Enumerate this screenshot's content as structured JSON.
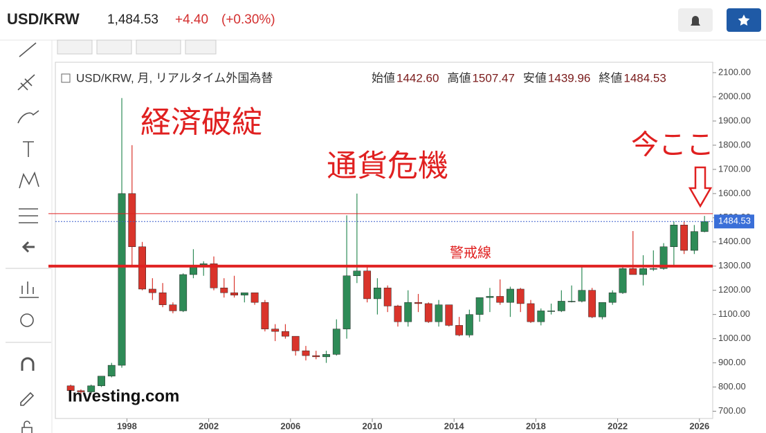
{
  "header": {
    "symbol": "USD/KRW",
    "price": "1,484.53",
    "change": "+4.40",
    "change_pct": "(+0.30%)"
  },
  "chart_data": {
    "type": "candlestick",
    "legend": {
      "title": "USD/KRW, 月, リアルタイム外国為替",
      "items": [
        {
          "label": "始値",
          "value": "1442.60"
        },
        {
          "label": "高値",
          "value": "1507.47"
        },
        {
          "label": "安値",
          "value": "1439.96"
        },
        {
          "label": "終値",
          "value": "1484.53"
        }
      ]
    },
    "annotations": [
      "経済破綻",
      "通貨危機",
      "今ここ"
    ],
    "watermark": "Investing.com",
    "up_color": "#2e8b57",
    "down_color": "#d9342b",
    "xlim": [
      1994.5,
      2026.65
    ],
    "ylim": [
      670,
      2143
    ],
    "xticks": [
      1998,
      2002,
      2006,
      2010,
      2014,
      2018,
      2022,
      2026
    ],
    "yticks": [
      {
        "value": 700,
        "label": "700.00"
      },
      {
        "value": 800,
        "label": "800.00"
      },
      {
        "value": 900,
        "label": "900.00"
      },
      {
        "value": 1000,
        "label": "1000.00"
      },
      {
        "value": 1100,
        "label": "1100.00"
      },
      {
        "value": 1200,
        "label": "1200.00"
      },
      {
        "value": 1300,
        "label": "1300.00"
      },
      {
        "value": 1400,
        "label": "1400.00"
      },
      {
        "value": 1500,
        "label": "1500.00"
      },
      {
        "value": 1600,
        "label": "1600.00"
      },
      {
        "value": 1700,
        "label": "1700.00"
      },
      {
        "value": 1800,
        "label": "1800.00"
      },
      {
        "value": 1900,
        "label": "1900.00"
      },
      {
        "value": 2000,
        "label": "2000.00"
      },
      {
        "value": 2100,
        "label": "2100.00"
      }
    ],
    "current_price": {
      "value": 1484.53,
      "label": "1484.53"
    },
    "hlines": [
      {
        "value": 1517,
        "color": "#e02020",
        "width": 1
      },
      {
        "value": 1300,
        "color": "#e02020",
        "width": 4,
        "label": "警戒線"
      }
    ],
    "x": [
      1995.0,
      1995.5,
      1996.0,
      1996.5,
      1997.0,
      1997.5,
      1998.0,
      1998.5,
      1999.0,
      1999.5,
      2000.0,
      2000.5,
      2001.0,
      2001.5,
      2002.0,
      2002.5,
      2003.0,
      2003.5,
      2004.0,
      2004.5,
      2005.0,
      2005.5,
      2006.0,
      2006.5,
      2007.0,
      2007.5,
      2008.0,
      2008.5,
      2009.0,
      2009.5,
      2010.0,
      2010.5,
      2011.0,
      2011.5,
      2012.0,
      2012.5,
      2013.0,
      2013.5,
      2014.0,
      2014.5,
      2015.0,
      2015.5,
      2016.0,
      2016.5,
      2017.0,
      2017.5,
      2018.0,
      2018.5,
      2019.0,
      2019.5,
      2020.0,
      2020.5,
      2021.0,
      2021.5,
      2022.0,
      2022.5,
      2023.0,
      2023.5,
      2024.0,
      2024.5,
      2025.0,
      2025.5,
      2026.0
    ],
    "open": [
      805,
      785,
      780,
      805,
      845,
      890,
      1600,
      1380,
      1205,
      1190,
      1140,
      1115,
      1265,
      1300,
      1310,
      1210,
      1190,
      1180,
      1190,
      1150,
      1040,
      1030,
      1010,
      950,
      930,
      925,
      935,
      1040,
      1260,
      1280,
      1165,
      1210,
      1135,
      1070,
      1150,
      1145,
      1070,
      1140,
      1055,
      1015,
      1100,
      1170,
      1175,
      1150,
      1205,
      1145,
      1070,
      1115,
      1115,
      1155,
      1155,
      1200,
      1090,
      1150,
      1190,
      1290,
      1265,
      1290,
      1290,
      1380,
      1470,
      1365,
      1442.6
    ],
    "high": [
      810,
      790,
      810,
      845,
      900,
      1995,
      1800,
      1400,
      1250,
      1230,
      1150,
      1270,
      1370,
      1320,
      1340,
      1250,
      1260,
      1190,
      1190,
      1160,
      1060,
      1060,
      1010,
      970,
      950,
      950,
      1080,
      1510,
      1600,
      1300,
      1250,
      1220,
      1140,
      1200,
      1185,
      1150,
      1160,
      1140,
      1090,
      1120,
      1160,
      1210,
      1245,
      1215,
      1210,
      1160,
      1125,
      1145,
      1200,
      1220,
      1295,
      1210,
      1150,
      1200,
      1300,
      1445,
      1345,
      1365,
      1395,
      1485,
      1487,
      1470,
      1507.47
    ],
    "low": [
      775,
      770,
      775,
      800,
      840,
      880,
      1300,
      1200,
      1160,
      1130,
      1105,
      1110,
      1250,
      1260,
      1200,
      1170,
      1170,
      1150,
      1140,
      1030,
      990,
      1000,
      930,
      910,
      915,
      900,
      930,
      1000,
      1230,
      1150,
      1100,
      1110,
      1050,
      1050,
      1110,
      1065,
      1050,
      1050,
      1010,
      1005,
      1070,
      1110,
      1140,
      1090,
      1110,
      1065,
      1055,
      1100,
      1110,
      1150,
      1150,
      1085,
      1080,
      1140,
      1185,
      1270,
      1220,
      1280,
      1285,
      1300,
      1350,
      1350,
      1439.96
    ],
    "close": [
      785,
      780,
      805,
      845,
      890,
      1600,
      1380,
      1205,
      1190,
      1140,
      1115,
      1265,
      1300,
      1310,
      1210,
      1190,
      1180,
      1190,
      1150,
      1040,
      1030,
      1010,
      950,
      930,
      925,
      935,
      1040,
      1260,
      1280,
      1165,
      1210,
      1135,
      1070,
      1150,
      1145,
      1070,
      1140,
      1055,
      1015,
      1100,
      1170,
      1175,
      1150,
      1205,
      1145,
      1070,
      1115,
      1115,
      1155,
      1155,
      1200,
      1090,
      1150,
      1190,
      1290,
      1265,
      1290,
      1290,
      1380,
      1470,
      1365,
      1443,
      1484.53
    ]
  }
}
